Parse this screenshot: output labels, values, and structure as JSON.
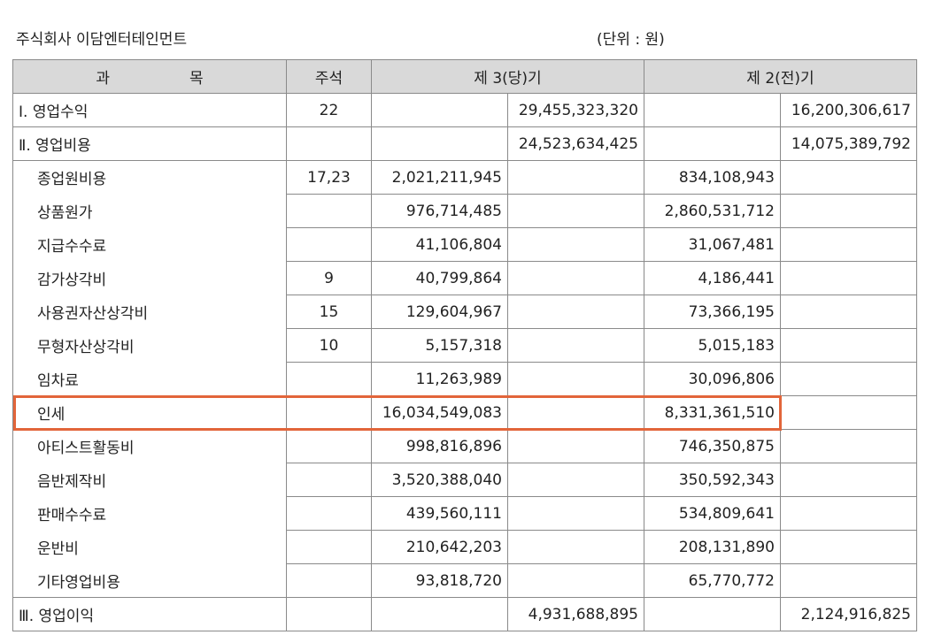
{
  "header": {
    "company": "주식회사 이담엔터테인먼트",
    "unit": "(단위 : 원)"
  },
  "table": {
    "columns": {
      "subject_a": "과",
      "subject_b": "목",
      "note": "주석",
      "current": "제 3(당)기",
      "prior": "제 2(전)기"
    },
    "rows": [
      {
        "subject": "Ⅰ. 영업수익",
        "note": "22",
        "cur_detail": "",
        "cur_total": "29,455,323,320",
        "pri_detail": "",
        "pri_total": "16,200,306,617"
      },
      {
        "subject": "Ⅱ. 영업비용",
        "note": "",
        "cur_detail": "",
        "cur_total": "24,523,634,425",
        "pri_detail": "",
        "pri_total": "14,075,389,792"
      },
      {
        "subject": "종업원비용",
        "note": "17,23",
        "cur_detail": "2,021,211,945",
        "cur_total": "",
        "pri_detail": "834,108,943",
        "pri_total": ""
      },
      {
        "subject": "상품원가",
        "note": "",
        "cur_detail": "976,714,485",
        "cur_total": "",
        "pri_detail": "2,860,531,712",
        "pri_total": ""
      },
      {
        "subject": "지급수수료",
        "note": "",
        "cur_detail": "41,106,804",
        "cur_total": "",
        "pri_detail": "31,067,481",
        "pri_total": ""
      },
      {
        "subject": "감가상각비",
        "note": "9",
        "cur_detail": "40,799,864",
        "cur_total": "",
        "pri_detail": "4,186,441",
        "pri_total": ""
      },
      {
        "subject": "사용권자산상각비",
        "note": "15",
        "cur_detail": "129,604,967",
        "cur_total": "",
        "pri_detail": "73,366,195",
        "pri_total": ""
      },
      {
        "subject": "무형자산상각비",
        "note": "10",
        "cur_detail": "5,157,318",
        "cur_total": "",
        "pri_detail": "5,015,183",
        "pri_total": ""
      },
      {
        "subject": "임차료",
        "note": "",
        "cur_detail": "11,263,989",
        "cur_total": "",
        "pri_detail": "30,096,806",
        "pri_total": ""
      },
      {
        "subject": "인세",
        "note": "",
        "cur_detail": "16,034,549,083",
        "cur_total": "",
        "pri_detail": "8,331,361,510",
        "pri_total": ""
      },
      {
        "subject": "아티스트활동비",
        "note": "",
        "cur_detail": "998,816,896",
        "cur_total": "",
        "pri_detail": "746,350,875",
        "pri_total": ""
      },
      {
        "subject": "음반제작비",
        "note": "",
        "cur_detail": "3,520,388,040",
        "cur_total": "",
        "pri_detail": "350,592,343",
        "pri_total": ""
      },
      {
        "subject": "판매수수료",
        "note": "",
        "cur_detail": "439,560,111",
        "cur_total": "",
        "pri_detail": "534,809,641",
        "pri_total": ""
      },
      {
        "subject": "운반비",
        "note": "",
        "cur_detail": "210,642,203",
        "cur_total": "",
        "pri_detail": "208,131,890",
        "pri_total": ""
      },
      {
        "subject": "기타영업비용",
        "note": "",
        "cur_detail": "93,818,720",
        "cur_total": "",
        "pri_detail": "65,770,772",
        "pri_total": ""
      },
      {
        "subject": "Ⅲ. 영업이익",
        "note": "",
        "cur_detail": "",
        "cur_total": "4,931,688,895",
        "pri_detail": "",
        "pri_total": "2,124,916,825"
      }
    ]
  },
  "highlight": {
    "row_subject": "인세",
    "color": "#e2653a"
  }
}
